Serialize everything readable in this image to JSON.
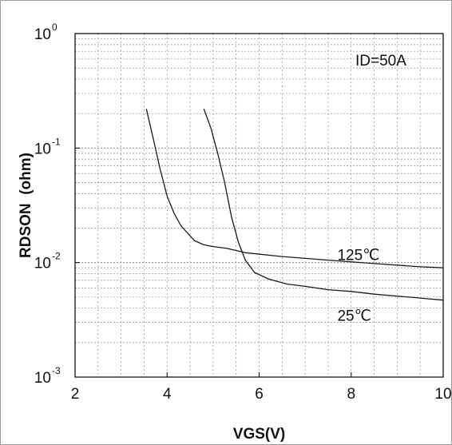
{
  "chart_data": {
    "type": "line",
    "title": "",
    "xlabel": "VGS(V)",
    "ylabel": "RDSON  (ohm)",
    "x_scale": "linear",
    "y_scale": "log",
    "xlim": [
      2,
      10
    ],
    "ylim": [
      0.001,
      1
    ],
    "x_ticks": [
      {
        "value": 2,
        "label": "2"
      },
      {
        "value": 4,
        "label": "4"
      },
      {
        "value": 6,
        "label": "6"
      },
      {
        "value": 8,
        "label": "8"
      },
      {
        "value": 10,
        "label": "10"
      }
    ],
    "y_ticks": [
      {
        "value": 1,
        "base": "10",
        "exp": "0"
      },
      {
        "value": 0.1,
        "base": "10",
        "exp": "-1"
      },
      {
        "value": 0.01,
        "base": "10",
        "exp": "-2"
      },
      {
        "value": 0.001,
        "base": "10",
        "exp": "-3"
      }
    ],
    "grid": true,
    "legend_box": "ID=50A",
    "series": [
      {
        "name": "125℃",
        "x": [
          3.55,
          3.7,
          3.85,
          4.0,
          4.15,
          4.3,
          4.45,
          4.6,
          4.8,
          5.0,
          5.3,
          5.7,
          6.5,
          7.5,
          8.5,
          9.5,
          10.0
        ],
        "y": [
          0.22,
          0.12,
          0.065,
          0.038,
          0.027,
          0.021,
          0.018,
          0.0155,
          0.0143,
          0.0138,
          0.0133,
          0.0122,
          0.0113,
          0.0105,
          0.0098,
          0.0092,
          0.009
        ]
      },
      {
        "name": "25℃",
        "x": [
          4.8,
          4.95,
          5.1,
          5.25,
          5.4,
          5.55,
          5.7,
          5.9,
          6.2,
          6.6,
          7.0,
          7.5,
          8.0,
          8.5,
          9.0,
          9.5,
          10.0
        ],
        "y": [
          0.22,
          0.15,
          0.09,
          0.05,
          0.025,
          0.015,
          0.0105,
          0.0082,
          0.0072,
          0.0065,
          0.0062,
          0.0058,
          0.0056,
          0.0053,
          0.0051,
          0.0049,
          0.0047
        ]
      }
    ],
    "annotations": [
      {
        "text": "125℃",
        "x": 7.7,
        "y": 0.0105
      },
      {
        "text": "25℃",
        "x": 7.7,
        "y": 0.0031
      }
    ]
  }
}
